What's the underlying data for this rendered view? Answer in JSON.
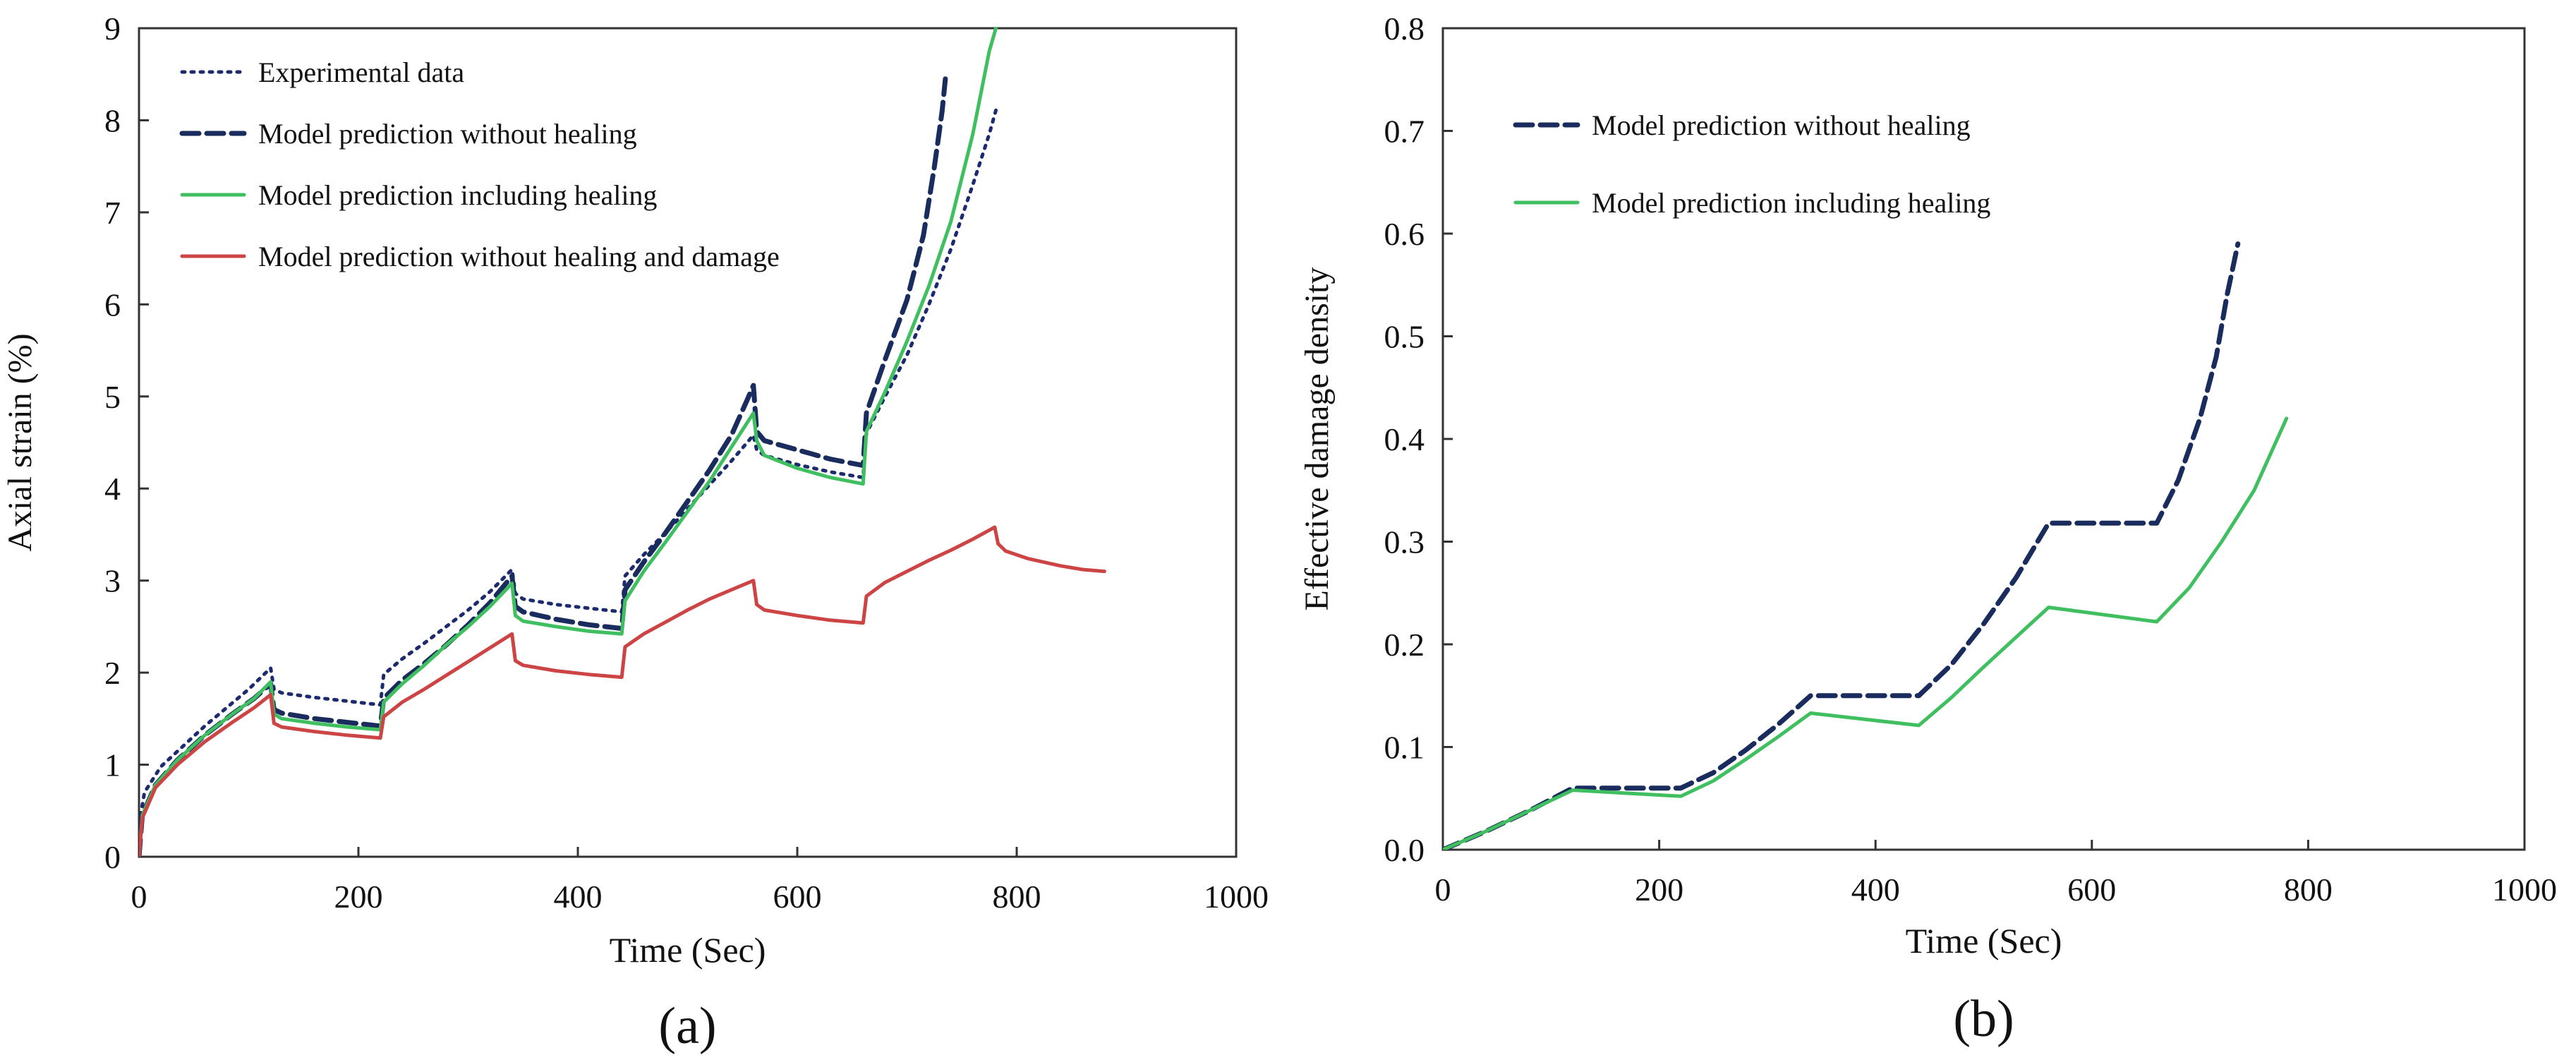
{
  "chart_data": [
    {
      "type": "line",
      "panel_label": "(a)",
      "xlabel": "Time (Sec)",
      "ylabel": "Axial strain (%)",
      "xlim": [
        0,
        1000
      ],
      "ylim": [
        0,
        9
      ],
      "xticks": [
        "0",
        "200",
        "400",
        "600",
        "800",
        "1000"
      ],
      "yticks": [
        "0",
        "1",
        "2",
        "3",
        "4",
        "5",
        "6",
        "7",
        "8",
        "9"
      ],
      "legend_position": "top-left",
      "series": [
        {
          "name": "Experimental data",
          "color": "#1d2a6e",
          "style": "dotted",
          "points": [
            [
              0,
              0.35
            ],
            [
              5,
              0.7
            ],
            [
              20,
              0.98
            ],
            [
              40,
              1.2
            ],
            [
              60,
              1.42
            ],
            [
              80,
              1.62
            ],
            [
              100,
              1.82
            ],
            [
              120,
              2.05
            ],
            [
              123,
              1.82
            ],
            [
              130,
              1.78
            ],
            [
              160,
              1.73
            ],
            [
              190,
              1.69
            ],
            [
              220,
              1.65
            ],
            [
              223,
              1.98
            ],
            [
              240,
              2.15
            ],
            [
              260,
              2.32
            ],
            [
              280,
              2.5
            ],
            [
              300,
              2.68
            ],
            [
              320,
              2.88
            ],
            [
              340,
              3.12
            ],
            [
              343,
              2.86
            ],
            [
              350,
              2.8
            ],
            [
              380,
              2.74
            ],
            [
              410,
              2.7
            ],
            [
              440,
              2.66
            ],
            [
              443,
              3.05
            ],
            [
              460,
              3.28
            ],
            [
              480,
              3.52
            ],
            [
              500,
              3.78
            ],
            [
              520,
              4.04
            ],
            [
              540,
              4.3
            ],
            [
              560,
              4.58
            ],
            [
              563,
              4.42
            ],
            [
              570,
              4.36
            ],
            [
              600,
              4.26
            ],
            [
              630,
              4.18
            ],
            [
              660,
              4.12
            ],
            [
              663,
              4.6
            ],
            [
              680,
              5.0
            ],
            [
              700,
              5.45
            ],
            [
              720,
              6.0
            ],
            [
              740,
              6.6
            ],
            [
              760,
              7.3
            ],
            [
              775,
              7.85
            ],
            [
              782,
              8.15
            ]
          ]
        },
        {
          "name": "Model prediction without healing",
          "color": "#1a2b5e",
          "style": "dashed",
          "points": [
            [
              0,
              0.0
            ],
            [
              3,
              0.45
            ],
            [
              15,
              0.78
            ],
            [
              35,
              1.05
            ],
            [
              60,
              1.32
            ],
            [
              85,
              1.55
            ],
            [
              105,
              1.72
            ],
            [
              120,
              1.88
            ],
            [
              123,
              1.6
            ],
            [
              130,
              1.56
            ],
            [
              160,
              1.5
            ],
            [
              190,
              1.46
            ],
            [
              220,
              1.42
            ],
            [
              223,
              1.72
            ],
            [
              240,
              1.92
            ],
            [
              260,
              2.1
            ],
            [
              280,
              2.3
            ],
            [
              300,
              2.52
            ],
            [
              320,
              2.76
            ],
            [
              340,
              3.05
            ],
            [
              343,
              2.72
            ],
            [
              350,
              2.66
            ],
            [
              380,
              2.58
            ],
            [
              410,
              2.52
            ],
            [
              440,
              2.48
            ],
            [
              443,
              2.9
            ],
            [
              460,
              3.2
            ],
            [
              480,
              3.52
            ],
            [
              500,
              3.86
            ],
            [
              520,
              4.2
            ],
            [
              540,
              4.58
            ],
            [
              555,
              4.98
            ],
            [
              560,
              5.12
            ],
            [
              563,
              4.62
            ],
            [
              570,
              4.52
            ],
            [
              600,
              4.42
            ],
            [
              630,
              4.32
            ],
            [
              660,
              4.25
            ],
            [
              663,
              4.82
            ],
            [
              680,
              5.4
            ],
            [
              700,
              6.05
            ],
            [
              715,
              6.75
            ],
            [
              725,
              7.5
            ],
            [
              732,
              8.1
            ],
            [
              735,
              8.45
            ]
          ]
        },
        {
          "name": "Model prediction including healing",
          "color": "#3fbf5f",
          "style": "solid",
          "points": [
            [
              0,
              0.0
            ],
            [
              3,
              0.45
            ],
            [
              15,
              0.78
            ],
            [
              35,
              1.05
            ],
            [
              60,
              1.32
            ],
            [
              85,
              1.55
            ],
            [
              105,
              1.72
            ],
            [
              120,
              1.9
            ],
            [
              123,
              1.55
            ],
            [
              130,
              1.5
            ],
            [
              160,
              1.45
            ],
            [
              190,
              1.41
            ],
            [
              220,
              1.38
            ],
            [
              223,
              1.68
            ],
            [
              240,
              1.88
            ],
            [
              260,
              2.08
            ],
            [
              280,
              2.3
            ],
            [
              300,
              2.5
            ],
            [
              320,
              2.72
            ],
            [
              340,
              2.97
            ],
            [
              343,
              2.62
            ],
            [
              350,
              2.56
            ],
            [
              380,
              2.5
            ],
            [
              410,
              2.45
            ],
            [
              440,
              2.42
            ],
            [
              443,
              2.78
            ],
            [
              460,
              3.1
            ],
            [
              480,
              3.42
            ],
            [
              500,
              3.75
            ],
            [
              520,
              4.08
            ],
            [
              540,
              4.45
            ],
            [
              560,
              4.82
            ],
            [
              563,
              4.52
            ],
            [
              570,
              4.36
            ],
            [
              600,
              4.22
            ],
            [
              630,
              4.12
            ],
            [
              660,
              4.05
            ],
            [
              663,
              4.62
            ],
            [
              680,
              5.05
            ],
            [
              700,
              5.6
            ],
            [
              720,
              6.2
            ],
            [
              740,
              6.9
            ],
            [
              760,
              7.85
            ],
            [
              775,
              8.75
            ],
            [
              781,
              9.0
            ]
          ]
        },
        {
          "name": "Model prediction without healing and damage",
          "color": "#cc4444",
          "style": "solid",
          "points": [
            [
              0,
              0.0
            ],
            [
              3,
              0.42
            ],
            [
              15,
              0.75
            ],
            [
              35,
              1.0
            ],
            [
              60,
              1.25
            ],
            [
              85,
              1.46
            ],
            [
              105,
              1.62
            ],
            [
              120,
              1.76
            ],
            [
              123,
              1.45
            ],
            [
              130,
              1.41
            ],
            [
              160,
              1.36
            ],
            [
              190,
              1.32
            ],
            [
              220,
              1.29
            ],
            [
              223,
              1.52
            ],
            [
              240,
              1.68
            ],
            [
              260,
              1.82
            ],
            [
              280,
              1.97
            ],
            [
              300,
              2.12
            ],
            [
              320,
              2.27
            ],
            [
              340,
              2.42
            ],
            [
              343,
              2.13
            ],
            [
              350,
              2.08
            ],
            [
              380,
              2.02
            ],
            [
              410,
              1.98
            ],
            [
              440,
              1.95
            ],
            [
              443,
              2.28
            ],
            [
              460,
              2.42
            ],
            [
              480,
              2.55
            ],
            [
              500,
              2.68
            ],
            [
              520,
              2.8
            ],
            [
              540,
              2.9
            ],
            [
              560,
              3.0
            ],
            [
              563,
              2.74
            ],
            [
              570,
              2.68
            ],
            [
              600,
              2.62
            ],
            [
              630,
              2.57
            ],
            [
              660,
              2.54
            ],
            [
              663,
              2.83
            ],
            [
              680,
              2.98
            ],
            [
              700,
              3.1
            ],
            [
              720,
              3.22
            ],
            [
              740,
              3.33
            ],
            [
              760,
              3.45
            ],
            [
              780,
              3.58
            ],
            [
              783,
              3.4
            ],
            [
              790,
              3.32
            ],
            [
              810,
              3.24
            ],
            [
              840,
              3.16
            ],
            [
              860,
              3.12
            ],
            [
              880,
              3.1
            ]
          ]
        }
      ]
    },
    {
      "type": "line",
      "panel_label": "(b)",
      "xlabel": "Time (Sec)",
      "ylabel": "Effective damage density",
      "xlim": [
        0,
        1000
      ],
      "ylim": [
        0,
        0.8
      ],
      "xticks": [
        "0",
        "200",
        "400",
        "600",
        "800",
        "1000"
      ],
      "yticks": [
        "0.0",
        "0.1",
        "0.2",
        "0.3",
        "0.4",
        "0.5",
        "0.6",
        "0.7",
        "0.8"
      ],
      "legend_position": "top-left",
      "series": [
        {
          "name": "Model prediction without healing",
          "color": "#1a2b5e",
          "style": "dashed",
          "points": [
            [
              0,
              0.0
            ],
            [
              40,
              0.018
            ],
            [
              80,
              0.038
            ],
            [
              120,
              0.06
            ],
            [
              220,
              0.06
            ],
            [
              250,
              0.075
            ],
            [
              280,
              0.097
            ],
            [
              310,
              0.122
            ],
            [
              340,
              0.15
            ],
            [
              440,
              0.15
            ],
            [
              470,
              0.18
            ],
            [
              500,
              0.22
            ],
            [
              530,
              0.265
            ],
            [
              560,
              0.318
            ],
            [
              660,
              0.318
            ],
            [
              680,
              0.36
            ],
            [
              700,
              0.42
            ],
            [
              715,
              0.48
            ],
            [
              725,
              0.54
            ],
            [
              735,
              0.59
            ]
          ]
        },
        {
          "name": "Model prediction including healing",
          "color": "#3fbf5f",
          "style": "solid",
          "points": [
            [
              0,
              0.0
            ],
            [
              40,
              0.018
            ],
            [
              80,
              0.038
            ],
            [
              120,
              0.058
            ],
            [
              220,
              0.052
            ],
            [
              250,
              0.067
            ],
            [
              280,
              0.088
            ],
            [
              310,
              0.11
            ],
            [
              340,
              0.133
            ],
            [
              440,
              0.121
            ],
            [
              470,
              0.148
            ],
            [
              500,
              0.178
            ],
            [
              530,
              0.207
            ],
            [
              560,
              0.236
            ],
            [
              660,
              0.222
            ],
            [
              690,
              0.255
            ],
            [
              720,
              0.3
            ],
            [
              750,
              0.35
            ],
            [
              780,
              0.42
            ]
          ]
        }
      ]
    }
  ]
}
